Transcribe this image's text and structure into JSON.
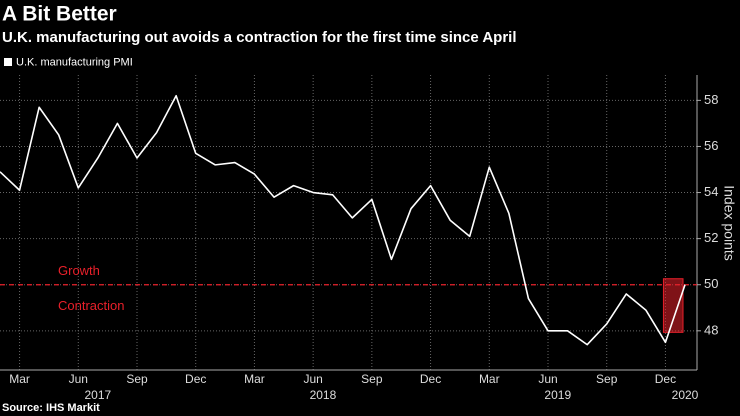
{
  "chart_data": {
    "type": "line",
    "title": "A Bit Better",
    "subtitle": "U.K. manufacturing out avoids a contraction for the first time since April",
    "y_axis_label": "Index points",
    "source": "Source: IHS Markit",
    "x": [
      "2017-02",
      "2017-03",
      "2017-04",
      "2017-05",
      "2017-06",
      "2017-07",
      "2017-08",
      "2017-09",
      "2017-10",
      "2017-11",
      "2017-12",
      "2018-01",
      "2018-02",
      "2018-03",
      "2018-04",
      "2018-05",
      "2018-06",
      "2018-07",
      "2018-08",
      "2018-09",
      "2018-10",
      "2018-11",
      "2018-12",
      "2019-01",
      "2019-02",
      "2019-03",
      "2019-04",
      "2019-05",
      "2019-06",
      "2019-07",
      "2019-08",
      "2019-09",
      "2019-10",
      "2019-11",
      "2019-12",
      "2020-01"
    ],
    "series": [
      {
        "name": "U.K. manufacturing PMI",
        "color": "#ffffff",
        "values": [
          54.9,
          54.1,
          57.7,
          56.5,
          54.2,
          55.5,
          57.0,
          55.5,
          56.6,
          58.2,
          55.7,
          55.2,
          55.3,
          54.8,
          53.8,
          54.3,
          54.0,
          53.9,
          52.9,
          53.7,
          51.1,
          53.3,
          54.3,
          52.8,
          52.1,
          55.1,
          53.1,
          49.4,
          48.0,
          48.0,
          47.4,
          48.3,
          49.6,
          48.9,
          47.5,
          50.0
        ]
      }
    ],
    "xticks": [
      {
        "value": "2017-03",
        "label": "Mar"
      },
      {
        "value": "2017-06",
        "label": "Jun"
      },
      {
        "value": "2017-09",
        "label": "Sep"
      },
      {
        "value": "2017-12",
        "label": "Dec"
      },
      {
        "value": "2018-03",
        "label": "Mar"
      },
      {
        "value": "2018-06",
        "label": "Jun"
      },
      {
        "value": "2018-09",
        "label": "Sep"
      },
      {
        "value": "2018-12",
        "label": "Dec"
      },
      {
        "value": "2019-03",
        "label": "Mar"
      },
      {
        "value": "2019-06",
        "label": "Jun"
      },
      {
        "value": "2019-09",
        "label": "Sep"
      },
      {
        "value": "2019-12",
        "label": "Dec"
      }
    ],
    "year_labels": [
      "2017",
      "2018",
      "2019",
      "2020"
    ],
    "ylim": [
      46.3,
      59.1
    ],
    "yticks": [
      48,
      50,
      52,
      54,
      56,
      58
    ],
    "grid": true,
    "reference_line": {
      "value": 50,
      "color": "#e8202a",
      "labels": [
        "Growth",
        "Contraction"
      ]
    },
    "highlight": {
      "x": [
        "2019-12",
        "2020-01"
      ],
      "color": "#e8202a"
    }
  }
}
